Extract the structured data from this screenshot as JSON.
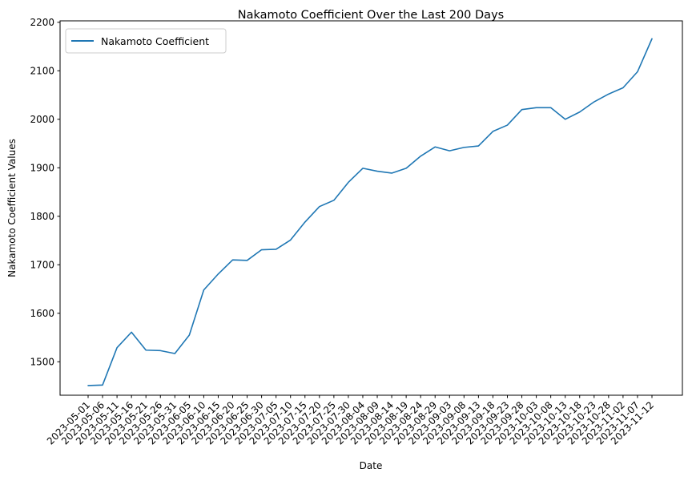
{
  "chart_data": {
    "type": "line",
    "title": "Nakamoto Coefficient Over the Last 200 Days",
    "xlabel": "Date",
    "ylabel": "Nakamoto Coefficient Values",
    "ylim": [
      1431,
      2203
    ],
    "yticks": [
      1500,
      1600,
      1700,
      1800,
      1900,
      2000,
      2100,
      2200
    ],
    "grid": false,
    "legend_position": "top-left",
    "x": [
      "2023-05-01",
      "2023-05-06",
      "2023-05-11",
      "2023-05-16",
      "2023-05-21",
      "2023-05-26",
      "2023-05-31",
      "2023-06-05",
      "2023-06-10",
      "2023-06-15",
      "2023-06-20",
      "2023-06-25",
      "2023-06-30",
      "2023-07-05",
      "2023-07-10",
      "2023-07-15",
      "2023-07-20",
      "2023-07-25",
      "2023-07-30",
      "2023-08-04",
      "2023-08-09",
      "2023-08-14",
      "2023-08-19",
      "2023-08-24",
      "2023-08-29",
      "2023-09-03",
      "2023-09-08",
      "2023-09-13",
      "2023-09-18",
      "2023-09-23",
      "2023-09-28",
      "2023-10-03",
      "2023-10-08",
      "2023-10-13",
      "2023-10-18",
      "2023-10-23",
      "2023-10-28",
      "2023-11-02",
      "2023-11-07",
      "2023-11-12"
    ],
    "series": [
      {
        "name": "Nakamoto Coefficient",
        "color": "#1f77b4",
        "values": [
          1451,
          1452,
          1529,
          1561,
          1524,
          1523,
          1517,
          1555,
          1648,
          1681,
          1710,
          1709,
          1731,
          1732,
          1751,
          1788,
          1820,
          1833,
          1870,
          1899,
          1893,
          1889,
          1899,
          1924,
          1943,
          1935,
          1942,
          1945,
          1975,
          1988,
          2020,
          2024,
          2024,
          2000,
          2015,
          2036,
          2052,
          2065,
          2098,
          2166
        ]
      }
    ]
  }
}
